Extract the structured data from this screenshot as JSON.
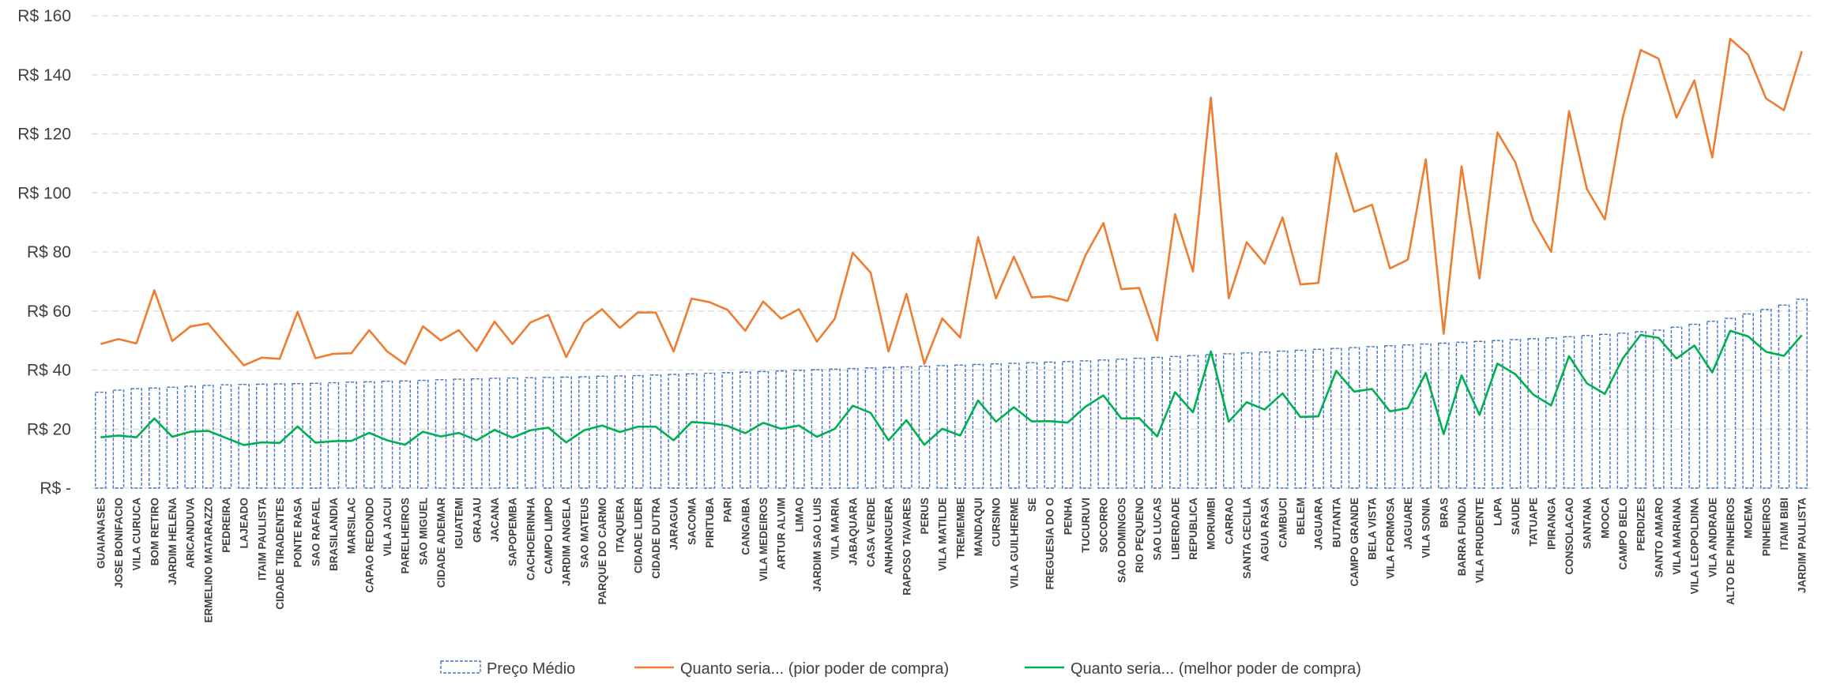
{
  "chart_data": {
    "type": "bar",
    "title": "",
    "xlabel": "",
    "ylabel": "",
    "ylim": [
      0,
      160
    ],
    "y_ticks": [
      0,
      20,
      40,
      60,
      80,
      100,
      120,
      140,
      160
    ],
    "y_tick_labels": [
      "R$ -",
      "R$ 20",
      "R$ 40",
      "R$ 60",
      "R$ 80",
      "R$ 100",
      "R$ 120",
      "R$ 140",
      "R$ 160"
    ],
    "grid": true,
    "legend_position": "bottom",
    "categories": [
      "GUAIANASES",
      "JOSE BONIFACIO",
      "VILA CURUCA",
      "BOM RETIRO",
      "JARDIM HELENA",
      "ARICANDUVA",
      "ERMELINO MATARAZZO",
      "PEDREIRA",
      "LAJEADO",
      "ITAIM PAULISTA",
      "CIDADE TIRADENTES",
      "PONTE RASA",
      "SAO RAFAEL",
      "BRASILANDIA",
      "MARSILAC",
      "CAPAO REDONDO",
      "VILA JACUI",
      "PARELHEIROS",
      "SAO MIGUEL",
      "CIDADE ADEMAR",
      "IGUATEMI",
      "GRAJAU",
      "JACANA",
      "SAPOPEMBA",
      "CACHOEIRINHA",
      "CAMPO LIMPO",
      "JARDIM ANGELA",
      "SAO MATEUS",
      "PARQUE DO CARMO",
      "ITAQUERA",
      "CIDADE LIDER",
      "CIDADE DUTRA",
      "JARAGUA",
      "SACOMA",
      "PIRITUBA",
      "PARI",
      "CANGAIBA",
      "VILA MEDEIROS",
      "ARTUR ALVIM",
      "LIMAO",
      "JARDIM SAO LUIS",
      "VILA MARIA",
      "JABAQUARA",
      "CASA VERDE",
      "ANHANGUERA",
      "RAPOSO TAVARES",
      "PERUS",
      "VILA MATILDE",
      "TREMEMBE",
      "MANDAQUI",
      "CURSINO",
      "VILA GUILHERME",
      "SE",
      "FREGUESIA DO O",
      "PENHA",
      "TUCURUVI",
      "SOCORRO",
      "SAO DOMINGOS",
      "RIO PEQUENO",
      "SAO LUCAS",
      "LIBERDADE",
      "REPUBLICA",
      "MORUMBI",
      "CARRAO",
      "SANTA CECILIA",
      "AGUA RASA",
      "CAMBUCI",
      "BELEM",
      "JAGUARA",
      "BUTANTA",
      "CAMPO GRANDE",
      "BELA VISTA",
      "VILA FORMOSA",
      "JAGUARE",
      "VILA SONIA",
      "BRAS",
      "BARRA FUNDA",
      "VILA PRUDENTE",
      "LAPA",
      "SAUDE",
      "TATUAPE",
      "IPIRANGA",
      "CONSOLACAO",
      "SANTANA",
      "MOOCA",
      "CAMPO BELO",
      "PERDIZES",
      "SANTO AMARO",
      "VILA MARIANA",
      "VILA LEOPOLDINA",
      "VILA ANDRADE",
      "ALTO DE PINHEIROS",
      "MOEMA",
      "PINHEIROS",
      "ITAIM BIBI",
      "JARDIM PAULISTA"
    ],
    "series": [
      {
        "name": "Preço Médio",
        "type": "bar",
        "color": "#4472C4",
        "values": [
          32.5,
          33.2,
          33.7,
          33.9,
          34.2,
          34.5,
          34.8,
          35,
          35.1,
          35.2,
          35.3,
          35.4,
          35.5,
          35.7,
          35.9,
          36,
          36.2,
          36.3,
          36.5,
          36.7,
          36.9,
          37,
          37.2,
          37.3,
          37.4,
          37.5,
          37.6,
          37.7,
          37.9,
          38,
          38.1,
          38.3,
          38.5,
          38.7,
          38.9,
          39.1,
          39.3,
          39.5,
          39.7,
          39.9,
          40.1,
          40.3,
          40.5,
          40.7,
          40.9,
          41.1,
          41.3,
          41.5,
          41.7,
          41.9,
          42.1,
          42.3,
          42.5,
          42.7,
          42.9,
          43.1,
          43.4,
          43.7,
          44,
          44.3,
          44.6,
          44.9,
          45.2,
          45.5,
          45.8,
          46.1,
          46.4,
          46.7,
          47,
          47.3,
          47.6,
          47.9,
          48.2,
          48.5,
          48.8,
          49.1,
          49.4,
          49.7,
          50,
          50.3,
          50.6,
          50.9,
          51.3,
          51.7,
          52.1,
          52.5,
          53,
          53.5,
          54.5,
          55.5,
          56.5,
          57.5,
          59,
          60.5,
          62,
          64
        ]
      },
      {
        "name": "Quanto seria... (pior poder de compra)",
        "type": "line",
        "color": "#ED7D31",
        "values": [
          48.8,
          50.5,
          49,
          67,
          49.8,
          54.7,
          55.8,
          48.6,
          41.6,
          44.2,
          43.8,
          59.7,
          44,
          45.5,
          45.7,
          53.5,
          46.3,
          42,
          54.8,
          50,
          53.5,
          46.4,
          56.4,
          48.8,
          56.1,
          58.7,
          44.4,
          56,
          60.6,
          54.3,
          59.5,
          59.5,
          46.3,
          64.2,
          63,
          60.4,
          53.3,
          63.2,
          57.4,
          60.6,
          49.6,
          57.4,
          79.7,
          73,
          46.3,
          65.8,
          42.1,
          57.5,
          51,
          85,
          64.3,
          78.4,
          64.6,
          65,
          63.4,
          78.9,
          89.8,
          67.4,
          67.8,
          50,
          92.8,
          73.4,
          132.3,
          64.3,
          83.3,
          76,
          91.7,
          69,
          69.5,
          113.4,
          93.6,
          96,
          74.4,
          77.4,
          111.4,
          52.3,
          109,
          71,
          120.5,
          110.4,
          90.6,
          80,
          127.7,
          101.3,
          91,
          125.5,
          148.4,
          145.5,
          125.5,
          138.1,
          112,
          152.2,
          146.8,
          132,
          128,
          148
        ]
      },
      {
        "name": "Quanto seria... (melhor poder de compra)",
        "type": "line",
        "color": "#00B050",
        "values": [
          17.2,
          17.8,
          17.2,
          23.6,
          17.4,
          19.1,
          19.4,
          17,
          14.6,
          15.5,
          15.3,
          20.9,
          15.4,
          15.9,
          16,
          18.7,
          16.2,
          14.7,
          19.1,
          17.5,
          18.7,
          16.2,
          19.7,
          17.1,
          19.6,
          20.5,
          15.5,
          19.6,
          21.2,
          19,
          20.8,
          20.8,
          16.2,
          22.4,
          22,
          21.1,
          18.6,
          22.1,
          20.1,
          21.2,
          17.4,
          20.1,
          27.9,
          25.5,
          16.2,
          23,
          14.7,
          20.1,
          17.8,
          29.7,
          22.5,
          27.4,
          22.6,
          22.7,
          22.2,
          27.6,
          31.4,
          23.6,
          23.7,
          17.5,
          32.5,
          25.7,
          46.3,
          22.5,
          29.1,
          26.6,
          32.1,
          24.1,
          24.3,
          39.7,
          32.7,
          33.6,
          26,
          27.1,
          39,
          18.3,
          38.2,
          24.8,
          42.2,
          38.6,
          31.7,
          28,
          44.7,
          35.5,
          31.9,
          43.9,
          51.9,
          50.9,
          43.9,
          48.3,
          39.2,
          53.3,
          51.4,
          46.2,
          44.8,
          51.8
        ]
      }
    ]
  }
}
